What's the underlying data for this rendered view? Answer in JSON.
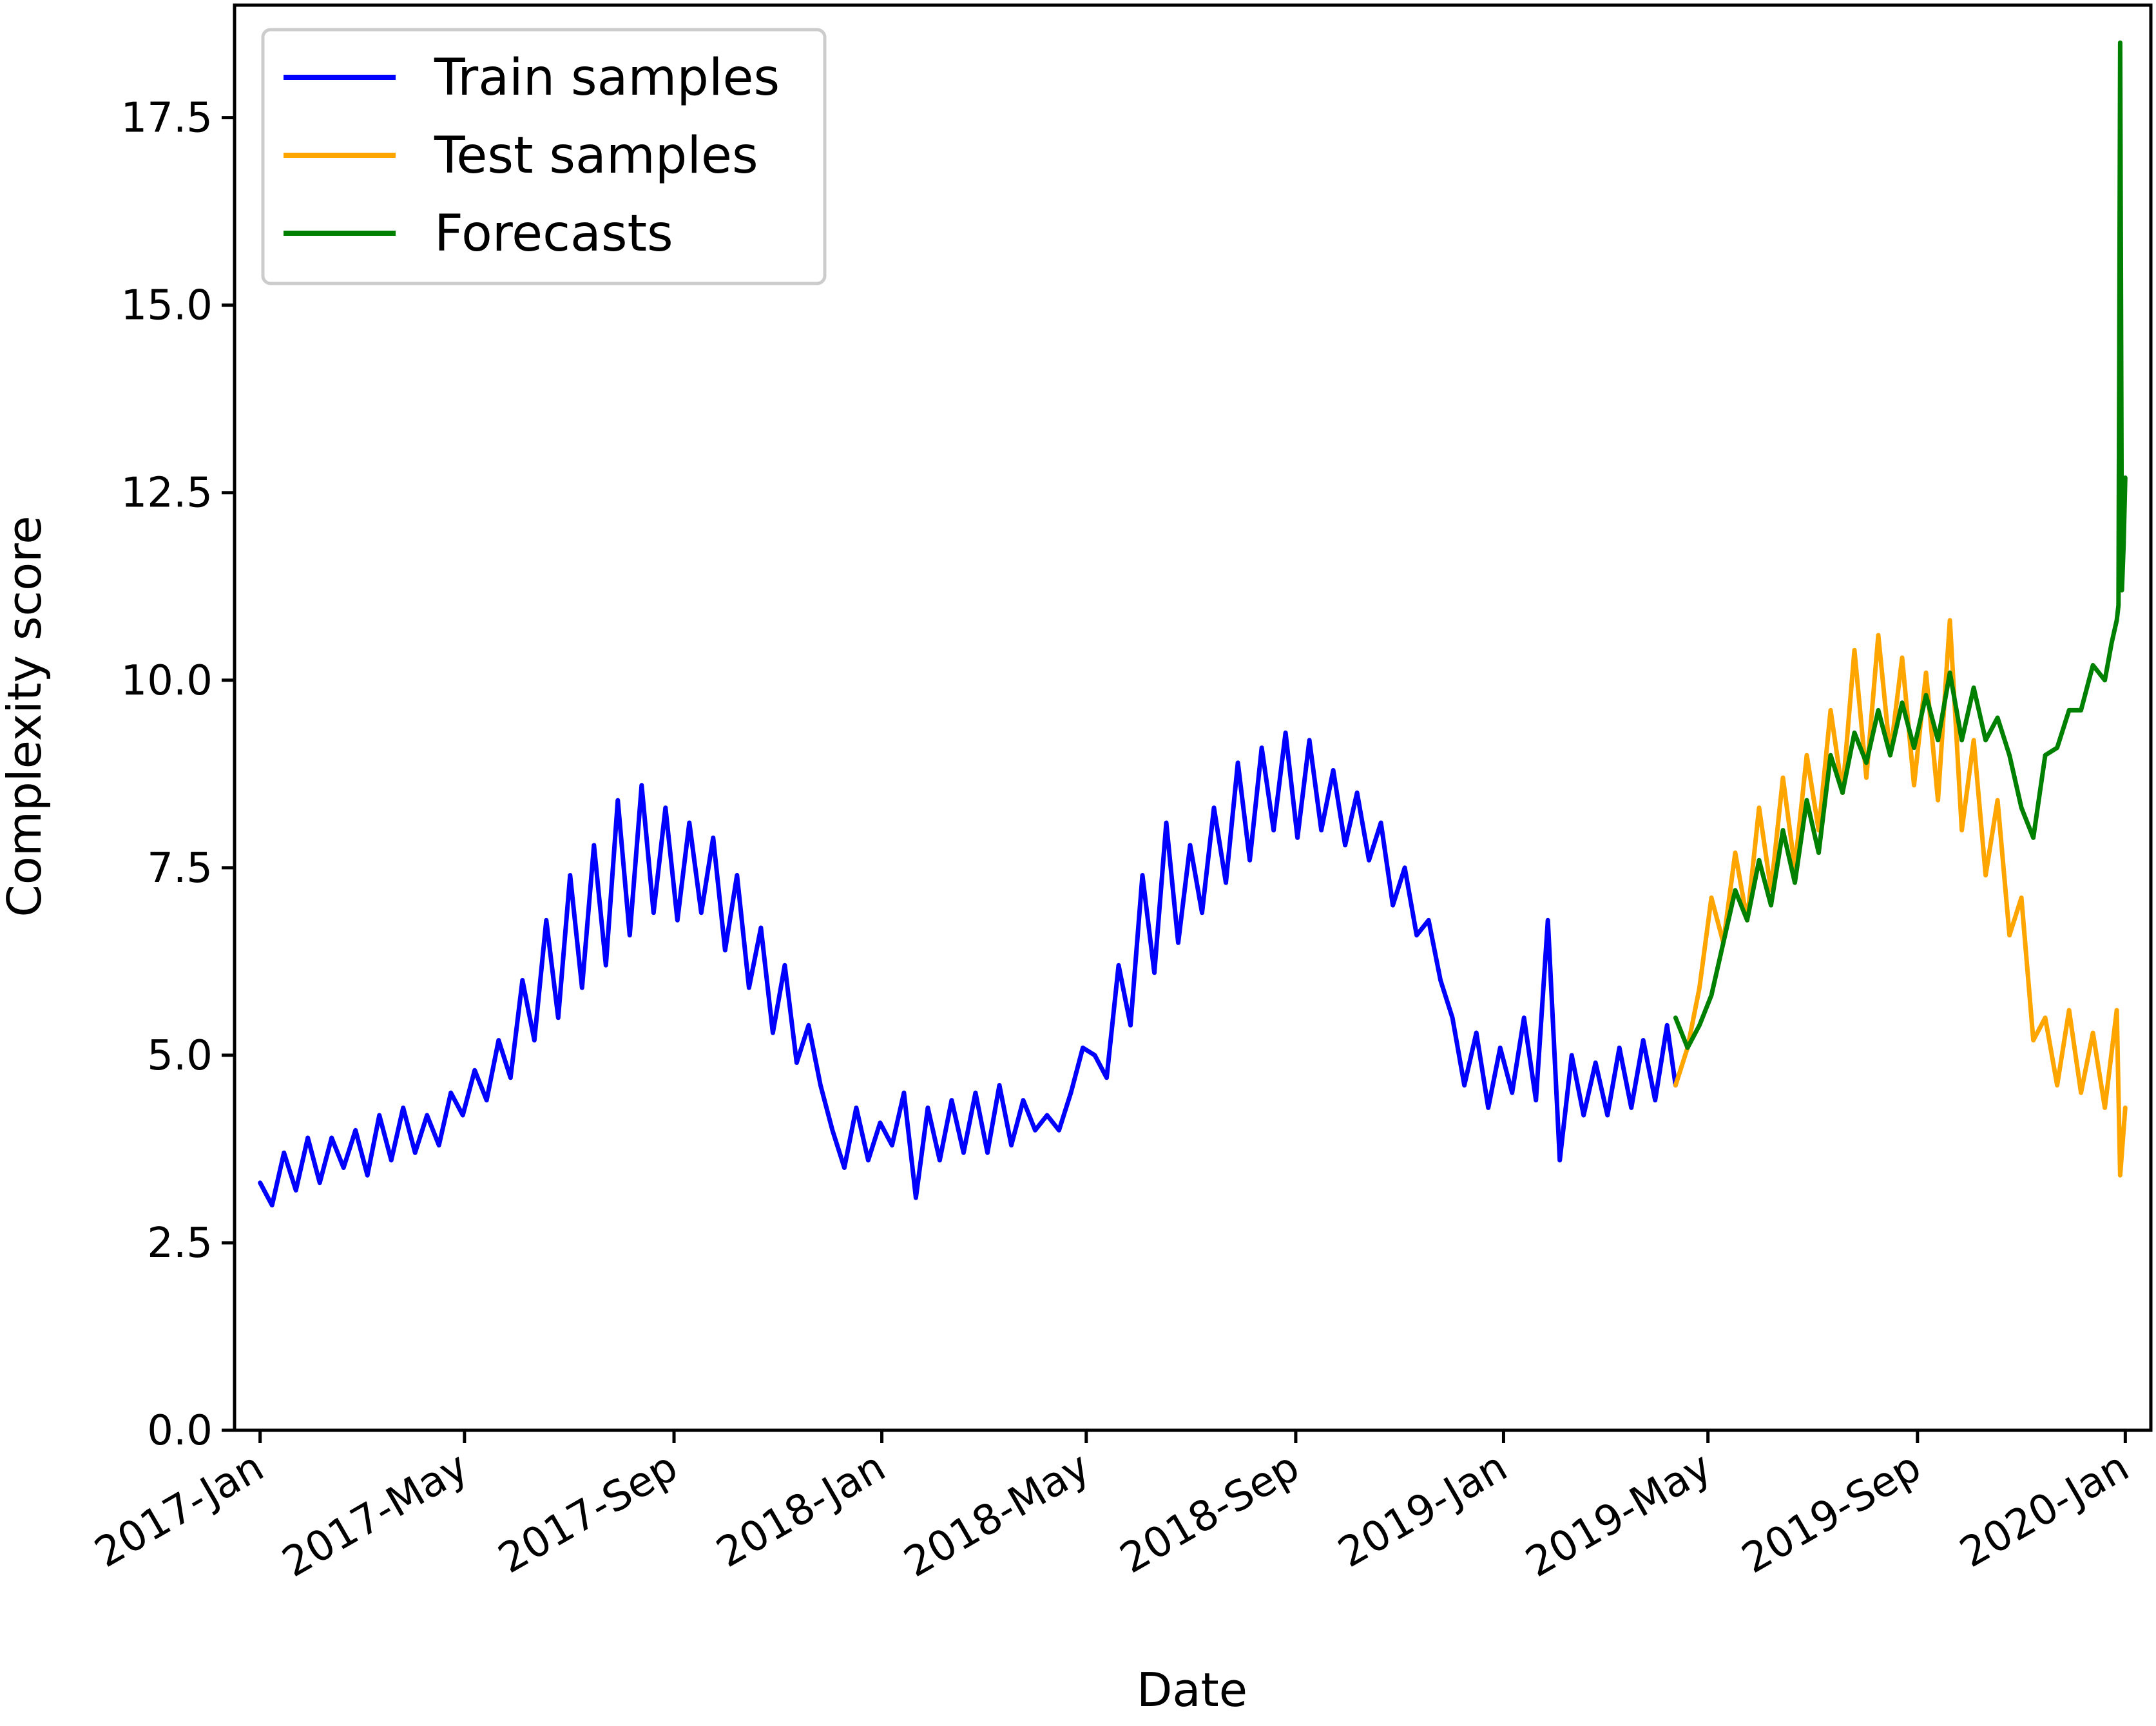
{
  "chart_data": {
    "type": "line",
    "title": "",
    "xlabel": "Date",
    "ylabel": "Complexity score",
    "x_type": "date",
    "xlim": [
      "2016-12-17",
      "2020-01-16"
    ],
    "ylim": [
      0,
      19
    ],
    "yticks": [
      0.0,
      2.5,
      5.0,
      7.5,
      10.0,
      12.5,
      15.0,
      17.5
    ],
    "ytick_labels": [
      "0.0",
      "2.5",
      "5.0",
      "7.5",
      "10.0",
      "12.5",
      "15.0",
      "17.5"
    ],
    "xticks": [
      "2017-01-01",
      "2017-05-01",
      "2017-09-01",
      "2018-01-01",
      "2018-05-01",
      "2018-09-01",
      "2019-01-01",
      "2019-05-01",
      "2019-09-01",
      "2020-01-01"
    ],
    "xtick_labels": [
      "2017-Jan",
      "2017-May",
      "2017-Sep",
      "2018-Jan",
      "2018-May",
      "2018-Sep",
      "2019-Jan",
      "2019-May",
      "2019-Sep",
      "2020-Jan"
    ],
    "grid": false,
    "legend_position": "top-left",
    "series": [
      {
        "name": "Train samples",
        "color": "#0000ff",
        "x": [
          "2017-01-01",
          "2017-01-08",
          "2017-01-15",
          "2017-01-22",
          "2017-01-29",
          "2017-02-05",
          "2017-02-12",
          "2017-02-19",
          "2017-02-26",
          "2017-03-05",
          "2017-03-12",
          "2017-03-19",
          "2017-03-26",
          "2017-04-02",
          "2017-04-09",
          "2017-04-16",
          "2017-04-23",
          "2017-04-30",
          "2017-05-07",
          "2017-05-14",
          "2017-05-21",
          "2017-05-28",
          "2017-06-04",
          "2017-06-11",
          "2017-06-18",
          "2017-06-25",
          "2017-07-02",
          "2017-07-09",
          "2017-07-16",
          "2017-07-23",
          "2017-07-30",
          "2017-08-06",
          "2017-08-13",
          "2017-08-20",
          "2017-08-27",
          "2017-09-03",
          "2017-09-10",
          "2017-09-17",
          "2017-09-24",
          "2017-10-01",
          "2017-10-08",
          "2017-10-15",
          "2017-10-22",
          "2017-10-29",
          "2017-11-05",
          "2017-11-12",
          "2017-11-19",
          "2017-11-26",
          "2017-12-03",
          "2017-12-10",
          "2017-12-17",
          "2017-12-24",
          "2017-12-31",
          "2018-01-07",
          "2018-01-14",
          "2018-01-21",
          "2018-01-28",
          "2018-02-04",
          "2018-02-11",
          "2018-02-18",
          "2018-02-25",
          "2018-03-04",
          "2018-03-11",
          "2018-03-18",
          "2018-03-25",
          "2018-04-01",
          "2018-04-08",
          "2018-04-15",
          "2018-04-22",
          "2018-04-29",
          "2018-05-06",
          "2018-05-13",
          "2018-05-20",
          "2018-05-27",
          "2018-06-03",
          "2018-06-10",
          "2018-06-17",
          "2018-06-24",
          "2018-07-01",
          "2018-07-08",
          "2018-07-15",
          "2018-07-22",
          "2018-07-29",
          "2018-08-05",
          "2018-08-12",
          "2018-08-19",
          "2018-08-26",
          "2018-09-02",
          "2018-09-09",
          "2018-09-16",
          "2018-09-23",
          "2018-09-30",
          "2018-10-07",
          "2018-10-14",
          "2018-10-21",
          "2018-10-28",
          "2018-11-04",
          "2018-11-11",
          "2018-11-18",
          "2018-11-25",
          "2018-12-02",
          "2018-12-09",
          "2018-12-16",
          "2018-12-23",
          "2018-12-30",
          "2019-01-06",
          "2019-01-13",
          "2019-01-20",
          "2019-01-27",
          "2019-02-03",
          "2019-02-10",
          "2019-02-17",
          "2019-02-24",
          "2019-03-03",
          "2019-03-10",
          "2019-03-17",
          "2019-03-24",
          "2019-03-31",
          "2019-04-07",
          "2019-04-12"
        ],
        "values": [
          3.3,
          3.0,
          3.7,
          3.2,
          3.9,
          3.3,
          3.9,
          3.5,
          4.0,
          3.4,
          4.2,
          3.6,
          4.3,
          3.7,
          4.2,
          3.8,
          4.5,
          4.2,
          4.8,
          4.4,
          5.2,
          4.7,
          6.0,
          5.2,
          6.8,
          5.5,
          7.4,
          5.9,
          7.8,
          6.2,
          8.4,
          6.6,
          8.6,
          6.9,
          8.3,
          6.8,
          8.1,
          6.9,
          7.9,
          6.4,
          7.4,
          5.9,
          6.7,
          5.3,
          6.2,
          4.9,
          5.4,
          4.6,
          4.0,
          3.5,
          4.3,
          3.6,
          4.1,
          3.8,
          4.5,
          3.1,
          4.3,
          3.6,
          4.4,
          3.7,
          4.5,
          3.7,
          4.6,
          3.8,
          4.4,
          4.0,
          4.2,
          4.0,
          4.5,
          5.1,
          5.0,
          4.7,
          6.2,
          5.4,
          7.4,
          6.1,
          8.1,
          6.5,
          7.8,
          6.9,
          8.3,
          7.3,
          8.9,
          7.6,
          9.1,
          8.0,
          9.3,
          7.9,
          9.2,
          8.0,
          8.8,
          7.8,
          8.5,
          7.6,
          8.1,
          7.0,
          7.5,
          6.6,
          6.8,
          6.0,
          5.5,
          4.6,
          5.3,
          4.3,
          5.1,
          4.5,
          5.5,
          4.4,
          6.8,
          3.6,
          5.0,
          4.2,
          4.9,
          4.2,
          5.1,
          4.3,
          5.2,
          4.4,
          5.4,
          4.6
        ]
      },
      {
        "name": "Test samples",
        "color": "#ffa500",
        "x": [
          "2019-04-12",
          "2019-04-19",
          "2019-04-26",
          "2019-05-03",
          "2019-05-10",
          "2019-05-17",
          "2019-05-24",
          "2019-05-31",
          "2019-06-07",
          "2019-06-14",
          "2019-06-21",
          "2019-06-28",
          "2019-07-05",
          "2019-07-12",
          "2019-07-19",
          "2019-07-26",
          "2019-08-02",
          "2019-08-09",
          "2019-08-16",
          "2019-08-23",
          "2019-08-30",
          "2019-09-06",
          "2019-09-13",
          "2019-09-20",
          "2019-09-27",
          "2019-10-04",
          "2019-10-11",
          "2019-10-18",
          "2019-10-25",
          "2019-11-01",
          "2019-11-08",
          "2019-11-15",
          "2019-11-22",
          "2019-11-29",
          "2019-12-06",
          "2019-12-13",
          "2019-12-20",
          "2019-12-27",
          "2019-12-29",
          "2020-01-01"
        ],
        "values": [
          4.6,
          5.1,
          5.9,
          7.1,
          6.5,
          7.7,
          6.8,
          8.3,
          7.2,
          8.7,
          7.5,
          9.0,
          8.0,
          9.6,
          8.5,
          10.4,
          8.7,
          10.6,
          9.0,
          10.3,
          8.6,
          10.1,
          8.4,
          10.8,
          8.0,
          9.2,
          7.4,
          8.4,
          6.6,
          7.1,
          5.2,
          5.5,
          4.6,
          5.6,
          4.5,
          5.3,
          4.3,
          5.6,
          3.4,
          4.3
        ]
      },
      {
        "name": "Forecasts",
        "color": "#008000",
        "x": [
          "2019-04-12",
          "2019-04-19",
          "2019-04-26",
          "2019-05-03",
          "2019-05-10",
          "2019-05-17",
          "2019-05-24",
          "2019-05-31",
          "2019-06-07",
          "2019-06-14",
          "2019-06-21",
          "2019-06-28",
          "2019-07-05",
          "2019-07-12",
          "2019-07-19",
          "2019-07-26",
          "2019-08-02",
          "2019-08-09",
          "2019-08-16",
          "2019-08-23",
          "2019-08-30",
          "2019-09-06",
          "2019-09-13",
          "2019-09-20",
          "2019-09-27",
          "2019-10-04",
          "2019-10-11",
          "2019-10-18",
          "2019-10-25",
          "2019-11-01",
          "2019-11-08",
          "2019-11-15",
          "2019-11-22",
          "2019-11-29",
          "2019-12-06",
          "2019-12-13",
          "2019-12-20",
          "2019-12-24",
          "2019-12-27",
          "2019-12-28",
          "2019-12-29",
          "2019-12-30",
          "2019-12-31",
          "2020-01-01"
        ],
        "values": [
          5.5,
          5.1,
          5.4,
          5.8,
          6.5,
          7.2,
          6.8,
          7.6,
          7.0,
          8.0,
          7.3,
          8.4,
          7.7,
          9.0,
          8.5,
          9.3,
          8.9,
          9.6,
          9.0,
          9.7,
          9.1,
          9.8,
          9.2,
          10.1,
          9.2,
          9.9,
          9.2,
          9.5,
          9.0,
          8.3,
          7.9,
          9.0,
          9.1,
          9.6,
          9.6,
          10.2,
          10.0,
          10.5,
          10.8,
          11.0,
          18.5,
          11.2,
          11.8,
          12.7
        ]
      }
    ]
  }
}
